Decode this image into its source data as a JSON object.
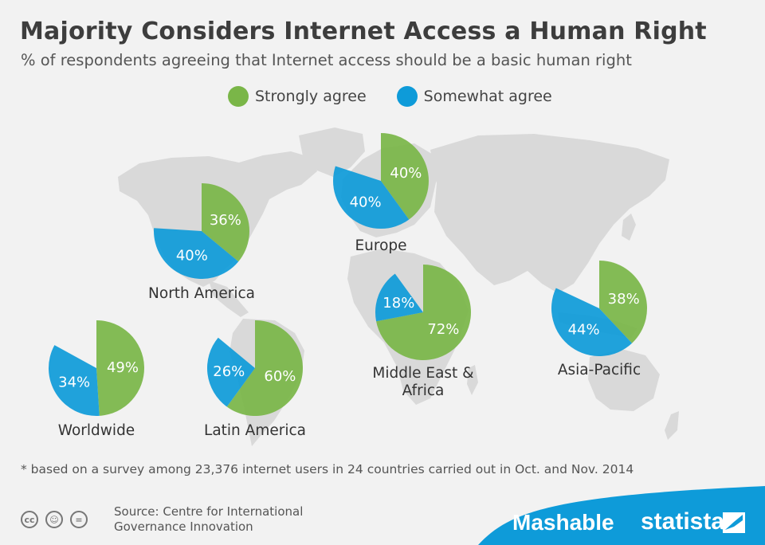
{
  "title": "Majority Considers Internet Access a Human Right",
  "subtitle": "% of respondents agreeing that Internet access should be a basic human right",
  "legend": {
    "strong_label": "Strongly agree",
    "somewhat_label": "Somewhat agree"
  },
  "colors": {
    "strong": "#7ab648",
    "somewhat": "#0e9bd9",
    "map": "#d9d9d9",
    "background": "#f2f2f2",
    "banner": "#0e9bd9"
  },
  "footnote": "* based on a survey among 23,376 internet users in 24 countries carried out in Oct. and Nov. 2014",
  "source": {
    "line1": "Source: Centre for International",
    "line2": "Governance Innovation"
  },
  "brands": {
    "mashable": "Mashable",
    "statista": "statista"
  },
  "cc_icons": [
    "cc-icon",
    "by-icon",
    "nd-icon"
  ],
  "chart_data": {
    "type": "pie",
    "title": "Majority Considers Internet Access a Human Right",
    "subtitle": "% of respondents agreeing that Internet access should be a basic human right",
    "series_names": [
      "Strongly agree",
      "Somewhat agree"
    ],
    "legend_position": "top-center",
    "pies": [
      {
        "region": [
          "Europe"
        ],
        "strongly_agree": 40,
        "somewhat_agree": 40
      },
      {
        "region": [
          "North America"
        ],
        "strongly_agree": 36,
        "somewhat_agree": 40
      },
      {
        "region": [
          "Middle East &",
          "Africa"
        ],
        "strongly_agree": 72,
        "somewhat_agree": 18
      },
      {
        "region": [
          "Asia-Pacific"
        ],
        "strongly_agree": 38,
        "somewhat_agree": 44
      },
      {
        "region": [
          "Worldwide"
        ],
        "strongly_agree": 49,
        "somewhat_agree": 34
      },
      {
        "region": [
          "Latin America"
        ],
        "strongly_agree": 60,
        "somewhat_agree": 26
      }
    ]
  }
}
